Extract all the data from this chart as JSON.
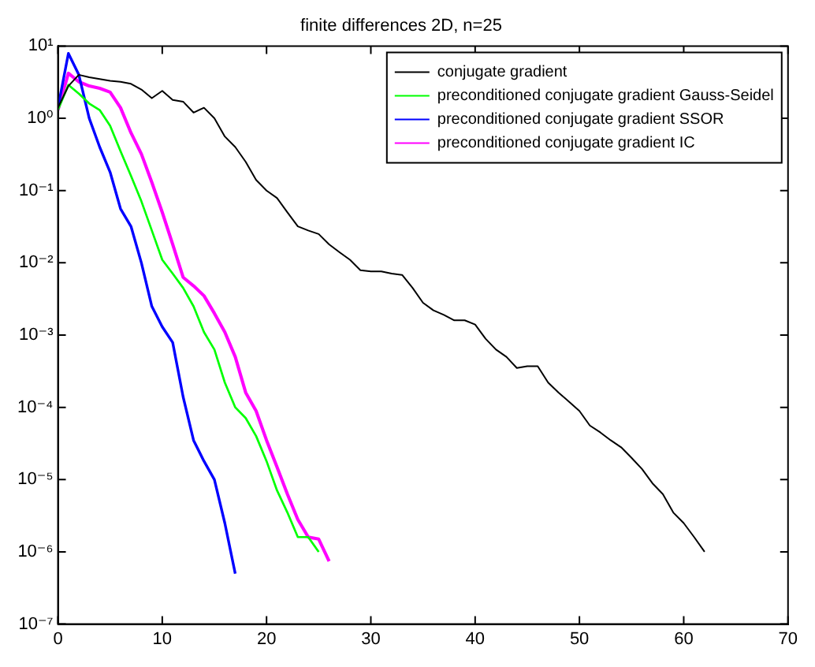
{
  "chart_data": {
    "type": "line",
    "title": "finite differences 2D, n=25",
    "xlim": [
      0,
      70
    ],
    "xticks": [
      0,
      10,
      20,
      30,
      40,
      50,
      60,
      70
    ],
    "ylim": [
      1e-07,
      10
    ],
    "log": "y",
    "yticks": [
      {
        "value": 1e-07,
        "label": "10⁻⁷"
      },
      {
        "value": 1e-06,
        "label": "10⁻⁶"
      },
      {
        "value": 1e-05,
        "label": "10⁻⁵"
      },
      {
        "value": 0.0001,
        "label": "10⁻⁴"
      },
      {
        "value": 0.001,
        "label": "10⁻³"
      },
      {
        "value": 0.01,
        "label": "10⁻²"
      },
      {
        "value": 0.1,
        "label": "10⁻¹"
      },
      {
        "value": 1,
        "label": "10⁰"
      },
      {
        "value": 10,
        "label": "10¹"
      }
    ],
    "grid": false,
    "legend": "top right",
    "marker": "none",
    "line_style": "solid",
    "series": [
      {
        "name": "conjugate gradient",
        "color": "#000000",
        "x": [
          0,
          1,
          2,
          3,
          4,
          5,
          6,
          7,
          8,
          9,
          10,
          11,
          12,
          13,
          14,
          15,
          16,
          17,
          18,
          19,
          20,
          21,
          22,
          23,
          24,
          25,
          26,
          27,
          28,
          29,
          30,
          31,
          32,
          33,
          34,
          35,
          36,
          37,
          38,
          39,
          40,
          41,
          42,
          43,
          44,
          45,
          46,
          47,
          48,
          49,
          50,
          51,
          52,
          53,
          54,
          55,
          56,
          57,
          58,
          59,
          60,
          61,
          62
        ],
        "values": [
          1.4,
          2.8,
          4.0,
          3.7,
          3.5,
          3.3,
          3.2,
          3.0,
          2.5,
          1.9,
          2.4,
          1.8,
          1.7,
          1.2,
          1.4,
          1.0,
          0.56,
          0.4,
          0.25,
          0.14,
          0.1,
          0.079,
          0.05,
          0.032,
          0.028,
          0.025,
          0.018,
          0.014,
          0.011,
          0.0079,
          0.0076,
          0.0076,
          0.0071,
          0.0068,
          0.0045,
          0.0028,
          0.0022,
          0.0019,
          0.0016,
          0.0016,
          0.0014,
          0.00089,
          0.00063,
          0.0005,
          0.00035,
          0.00037,
          0.00037,
          0.00022,
          0.00016,
          0.00012,
          8.9e-05,
          5.6e-05,
          4.5e-05,
          3.5e-05,
          2.8e-05,
          2e-05,
          1.4e-05,
          8.9e-06,
          6.3e-06,
          3.5e-06,
          2.5e-06,
          1.6e-06,
          1e-06
        ]
      },
      {
        "name": "preconditioned conjugate gradient Gauss-Seidel",
        "color": "#00ff00",
        "x": [
          0,
          1,
          2,
          3,
          4,
          5,
          6,
          7,
          8,
          9,
          10,
          11,
          12,
          13,
          14,
          15,
          16,
          17,
          18,
          19,
          20,
          21,
          22,
          23,
          24,
          25
        ],
        "values": [
          1.3,
          2.9,
          2.2,
          1.6,
          1.3,
          0.79,
          0.35,
          0.16,
          0.071,
          0.028,
          0.011,
          0.0071,
          0.0045,
          0.0025,
          0.0011,
          0.00063,
          0.00022,
          0.0001,
          7.1e-05,
          4e-05,
          1.8e-05,
          7.1e-06,
          3.5e-06,
          1.6e-06,
          1.6e-06,
          1e-06
        ]
      },
      {
        "name": "preconditioned conjugate gradient SSOR",
        "color": "#0000ff",
        "x": [
          0,
          1,
          2,
          3,
          4,
          5,
          6,
          7,
          8,
          9,
          10,
          11,
          12,
          13,
          14,
          15,
          16,
          17
        ],
        "values": [
          1.4,
          7.9,
          4.0,
          1.0,
          0.4,
          0.18,
          0.056,
          0.032,
          0.01,
          0.0025,
          0.0013,
          0.00079,
          0.00014,
          3.5e-05,
          1.8e-05,
          1e-05,
          2.5e-06,
          5e-07
        ]
      },
      {
        "name": "preconditioned conjugate gradient IC",
        "color": "#ff00ff",
        "x": [
          0,
          1,
          2,
          3,
          4,
          5,
          6,
          7,
          8,
          9,
          10,
          11,
          12,
          13,
          14,
          15,
          16,
          17,
          18,
          19,
          20,
          21,
          22,
          23,
          24,
          25,
          26
        ],
        "values": [
          1.3,
          4.2,
          3.2,
          2.8,
          2.6,
          2.3,
          1.4,
          0.63,
          0.32,
          0.13,
          0.05,
          0.018,
          0.0063,
          0.0048,
          0.0035,
          0.002,
          0.0011,
          0.0005,
          0.00016,
          8.9e-05,
          3.5e-05,
          1.5e-05,
          6.3e-06,
          2.8e-06,
          1.6e-06,
          1.5e-06,
          7.4e-07
        ]
      }
    ]
  }
}
